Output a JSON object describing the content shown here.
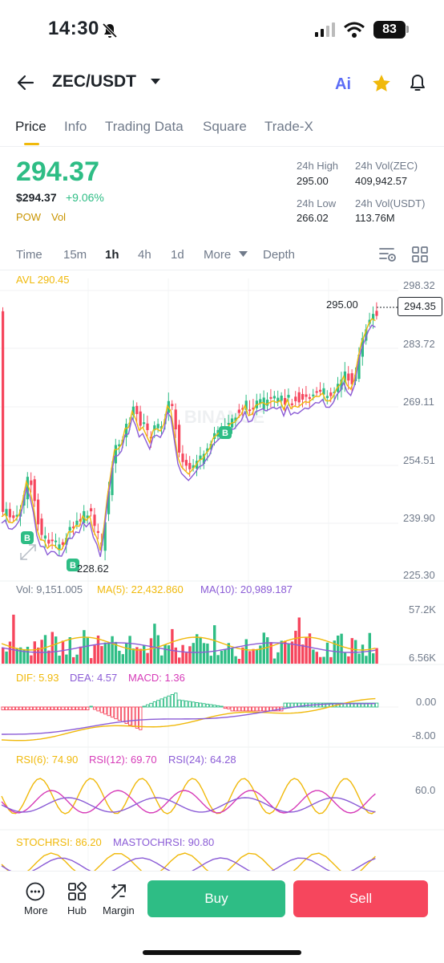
{
  "status": {
    "time": "14:30",
    "battery": "83"
  },
  "header": {
    "pair": "ZEC/USDT",
    "ai_label": "Ai"
  },
  "tabs": [
    "Price",
    "Info",
    "Trading Data",
    "Square",
    "Trade-X"
  ],
  "ticker": {
    "last": "294.37",
    "usd": "$294.37",
    "change": "+9.06%",
    "tags": [
      "POW",
      "Vol"
    ],
    "high_label": "24h High",
    "high": "295.00",
    "low_label": "24h Low",
    "low": "266.02",
    "vol_base_label": "24h Vol(ZEC)",
    "vol_base": "409,942.57",
    "vol_quote_label": "24h Vol(USDT)",
    "vol_quote": "113.76M"
  },
  "controls": {
    "items": [
      "Time",
      "15m",
      "1h",
      "4h",
      "1d",
      "More"
    ],
    "depth": "Depth"
  },
  "main_chart": {
    "avl": "AVL 290.45",
    "axis": [
      "298.32",
      "283.72",
      "269.11",
      "254.51",
      "239.90",
      "225.30"
    ],
    "high_mark": "295.00",
    "low_mark": "228.62",
    "current": "294.35",
    "watermark": "BINANCE",
    "buy_marker": "B"
  },
  "volume": {
    "vol": "Vol: 9,151.005",
    "ma5": "MA(5): 22,432.860",
    "ma10": "MA(10): 20,989.187",
    "axis": [
      "57.2K",
      "6.56K"
    ]
  },
  "macd": {
    "dif": "DIF: 5.93",
    "dea": "DEA: 4.57",
    "macd": "MACD: 1.36",
    "axis": [
      "0.00",
      "-8.00"
    ]
  },
  "rsi": {
    "r6": "RSI(6): 74.90",
    "r12": "RSI(12): 69.70",
    "r24": "RSI(24): 64.28",
    "axis": [
      "60.0"
    ]
  },
  "stoch": {
    "k": "STOCHRSI: 86.20",
    "d": "MASTOCHRSI: 90.80"
  },
  "bottom": {
    "more": "More",
    "hub": "Hub",
    "margin": "Margin",
    "buy": "Buy",
    "sell": "Sell"
  },
  "colors": {
    "up": "#2ebd85",
    "down": "#f6465d",
    "accent": "#f0b90b",
    "purple": "#8b5cd6",
    "pink": "#d63bb8"
  }
}
